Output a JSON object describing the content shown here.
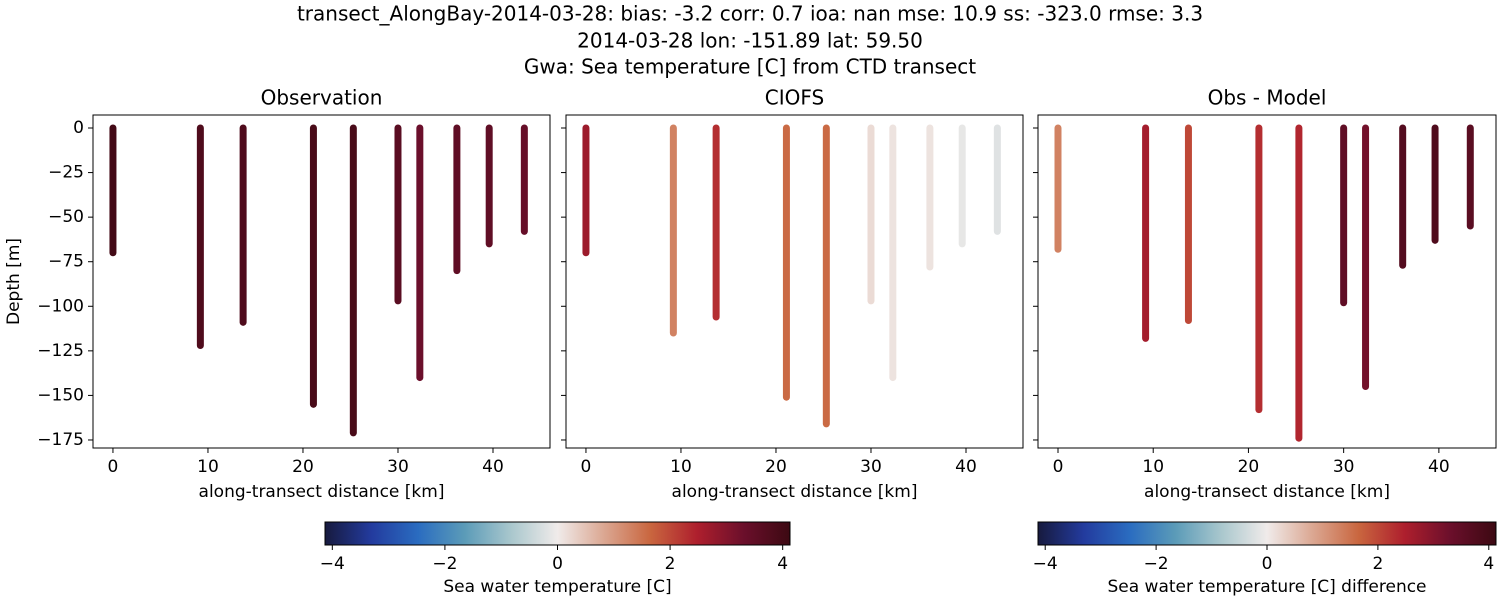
{
  "title": [
    "transect_AlongBay-2014-03-28: bias: -3.2  corr: 0.7  ioa: nan  mse: 10.9  ss: -323.0  rmse: 3.3",
    "2014-03-28 lon: -151.89 lat: 59.50",
    "Gwa: Sea temperature [C] from CTD transect"
  ],
  "colormap": [
    "#171a3e",
    "#233b9e",
    "#2a6cc0",
    "#5b9bb8",
    "#a9c7cd",
    "#f0ebea",
    "#dba792",
    "#c9663f",
    "#ae1f2d",
    "#6b0f2b",
    "#3c0912"
  ],
  "chart_data": [
    {
      "type": "profile",
      "title": "Observation",
      "xlabel": "along-transect distance [km]",
      "ylabel": "Depth [m]",
      "show_ytick_labels": true,
      "x": [
        0,
        9.2,
        13.7,
        21.1,
        25.3,
        30.0,
        32.3,
        36.2,
        39.6,
        43.3
      ],
      "depths": [
        -70,
        -122,
        -109,
        -155,
        -171,
        -97,
        -140,
        -80,
        -65,
        -58
      ],
      "values": [
        4.0,
        3.8,
        3.8,
        3.9,
        3.9,
        3.6,
        3.3,
        3.5,
        3.5,
        3.4
      ],
      "xlim": [
        -2.1,
        46
      ],
      "ylim": [
        -179.5,
        7.3
      ],
      "xticks": [
        0,
        10,
        20,
        30,
        40
      ],
      "yticks": [
        0,
        {
          "value": -25,
          "label": "−25"
        },
        {
          "value": -50,
          "label": "−50"
        },
        {
          "value": -75,
          "label": "−75"
        },
        {
          "value": -100,
          "label": "−100"
        },
        {
          "value": -125,
          "label": "−125"
        },
        {
          "value": -150,
          "label": "−150"
        },
        {
          "value": -175,
          "label": "−175"
        }
      ]
    },
    {
      "type": "profile",
      "title": "CIOFS",
      "xlabel": "along-transect distance [km]",
      "show_ytick_labels": false,
      "x": [
        0,
        9.2,
        13.7,
        21.1,
        25.3,
        30.0,
        32.3,
        36.2,
        39.6,
        43.3
      ],
      "depths": [
        -70,
        -115,
        -106,
        -151,
        -166,
        -97,
        -140,
        -78,
        -65,
        -58
      ],
      "values": [
        2.7,
        1.3,
        2.3,
        1.6,
        1.6,
        0.2,
        0.1,
        0.1,
        -0.1,
        -0.2
      ],
      "xlim": [
        -2.1,
        46
      ],
      "ylim": [
        -179.5,
        7.3
      ],
      "xticks": [
        0,
        10,
        20,
        30,
        40
      ],
      "yticks": [
        0,
        -25,
        -50,
        -75,
        -100,
        -125,
        -150,
        -175
      ]
    },
    {
      "type": "profile",
      "title": "Obs - Model",
      "xlabel": "along-transect distance [km]",
      "show_ytick_labels": false,
      "x": [
        0,
        9.2,
        13.7,
        21.1,
        25.3,
        30.0,
        32.3,
        36.2,
        39.6,
        43.3
      ],
      "depths": [
        -68,
        -118,
        -108,
        -158,
        -174,
        -98,
        -145,
        -77,
        -63,
        -55
      ],
      "values": [
        1.3,
        2.6,
        2.0,
        2.3,
        2.4,
        3.5,
        3.2,
        3.7,
        3.8,
        3.6
      ],
      "xlim": [
        -2.1,
        46
      ],
      "ylim": [
        -179.5,
        7.3
      ],
      "xticks": [
        0,
        10,
        20,
        30,
        40
      ],
      "yticks": [
        0,
        -25,
        -50,
        -75,
        -100,
        -125,
        -150,
        -175
      ]
    }
  ],
  "colorbars": [
    {
      "label": "Sea water temperature [C]",
      "clim": [
        -4.13,
        4.13
      ],
      "ticks": [
        {
          "value": -4,
          "label": "−4"
        },
        {
          "value": -2,
          "label": "−2"
        },
        0,
        2,
        4
      ]
    },
    {
      "label": "Sea water temperature [C] difference",
      "clim": [
        -4.13,
        4.13
      ],
      "ticks": [
        {
          "value": -4,
          "label": "−4"
        },
        {
          "value": -2,
          "label": "−2"
        },
        0,
        2,
        4
      ]
    }
  ]
}
